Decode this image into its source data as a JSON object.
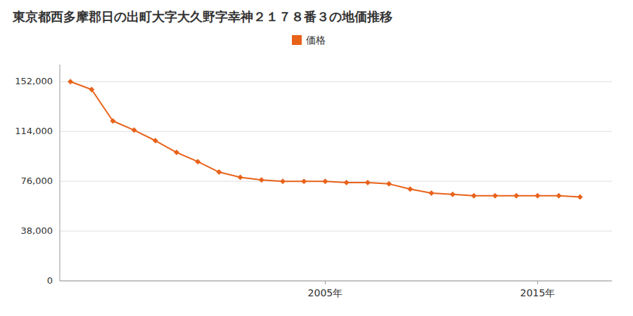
{
  "chart_data": {
    "type": "line",
    "title": "東京都西多摩郡日の出町大字大久野字幸神２１７８番３の地価推移",
    "x": [
      1993,
      1994,
      1995,
      1996,
      1997,
      1998,
      1999,
      2000,
      2001,
      2002,
      2003,
      2004,
      2005,
      2006,
      2007,
      2008,
      2009,
      2010,
      2011,
      2012,
      2013,
      2014,
      2015,
      2016,
      2017
    ],
    "series": [
      {
        "name": "価格",
        "color": "#E8621A",
        "marker": "diamond",
        "line_style": "solid",
        "values": [
          152000,
          146000,
          122000,
          115000,
          107000,
          98000,
          91000,
          83000,
          79000,
          77000,
          76000,
          76000,
          76000,
          75000,
          75000,
          74000,
          70000,
          67000,
          66000,
          65000,
          65000,
          65000,
          65000,
          65000,
          64000
        ]
      }
    ],
    "xlim": [
      1992.5,
      2018.5
    ],
    "xticks": [
      {
        "value": 2005,
        "label": "2005年"
      },
      {
        "value": 2015,
        "label": "2015年"
      }
    ],
    "ylim": [
      0,
      165000
    ],
    "yticks": [
      0,
      {
        "value": 38000,
        "label": "38,000"
      },
      {
        "value": 76000,
        "label": "76,000"
      },
      {
        "value": 114000,
        "label": "114,000"
      },
      {
        "value": 152000,
        "label": "152,000"
      }
    ],
    "grid": true,
    "legend": "top"
  }
}
